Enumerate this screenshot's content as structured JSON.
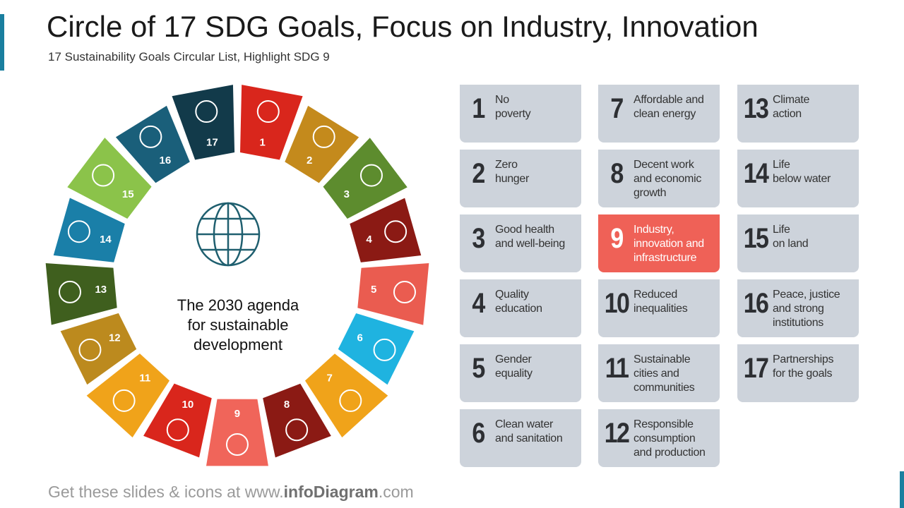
{
  "header": {
    "title": "Circle of 17 SDG Goals, Focus on Industry, Innovation",
    "subtitle": "17 Sustainability Goals Circular List, Highlight SDG 9"
  },
  "center_text": [
    "The 2030 agenda",
    "for sustainable",
    "development"
  ],
  "goals": [
    {
      "number": 1,
      "label": [
        "No",
        "poverty"
      ]
    },
    {
      "number": 2,
      "label": [
        "Zero",
        "hunger"
      ]
    },
    {
      "number": 3,
      "label": [
        "Good health",
        "and well-being"
      ]
    },
    {
      "number": 4,
      "label": [
        "Quality",
        "education"
      ]
    },
    {
      "number": 5,
      "label": [
        "Gender",
        "equality"
      ]
    },
    {
      "number": 6,
      "label": [
        "Clean water",
        "and sanitation"
      ]
    },
    {
      "number": 7,
      "label": [
        "Affordable and",
        "clean energy"
      ]
    },
    {
      "number": 8,
      "label": [
        "Decent work",
        "and economic",
        "growth"
      ]
    },
    {
      "number": 9,
      "label": [
        "Industry,",
        "innovation and",
        "infrastructure"
      ],
      "highlighted": true
    },
    {
      "number": 10,
      "label": [
        "Reduced",
        "inequalities"
      ]
    },
    {
      "number": 11,
      "label": [
        "Sustainable",
        "cities and",
        "communities"
      ]
    },
    {
      "number": 12,
      "label": [
        "Responsible",
        "consumption",
        "and production"
      ]
    },
    {
      "number": 13,
      "label": [
        "Climate",
        "action"
      ]
    },
    {
      "number": 14,
      "label": [
        "Life",
        "below water"
      ]
    },
    {
      "number": 15,
      "label": [
        "Life",
        "on land"
      ]
    },
    {
      "number": 16,
      "label": [
        "Peace, justice",
        "and strong",
        "institutions"
      ]
    },
    {
      "number": 17,
      "label": [
        "Partnerships",
        "for the goals"
      ]
    }
  ],
  "footer": {
    "prefix": "Get these slides & icons at www.",
    "brand": "infoDiagram",
    "suffix": ".com"
  }
}
